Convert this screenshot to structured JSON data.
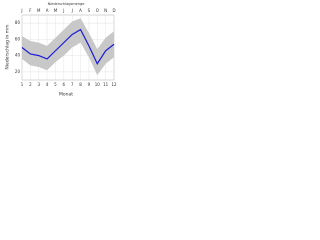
{
  "chart_data": {
    "type": "line",
    "title": "Niederschlagsmenge",
    "x_label": "Monat",
    "y_label": "Niederschlag in mm",
    "x": [
      1,
      2,
      3,
      4,
      5,
      6,
      7,
      8,
      9,
      10,
      11,
      12
    ],
    "categories": [
      "J",
      "F",
      "M",
      "A",
      "M",
      "J",
      "J",
      "A",
      "S",
      "O",
      "N",
      "D"
    ],
    "series": [
      {
        "color": "#1a1adc",
        "values": [
          50,
          42,
          40,
          36,
          46,
          56,
          66,
          72,
          52,
          30,
          46,
          54
        ]
      }
    ],
    "band": {
      "color": "#c8c8c8",
      "upper": [
        64,
        58,
        56,
        52,
        62,
        72,
        82,
        86,
        68,
        48,
        62,
        70
      ],
      "lower": [
        36,
        28,
        26,
        22,
        32,
        40,
        50,
        56,
        38,
        16,
        30,
        38
      ]
    },
    "xlim": [
      1,
      12
    ],
    "xticks": [
      1,
      2,
      3,
      4,
      5,
      6,
      7,
      8,
      9,
      10,
      11,
      12
    ],
    "ylim": [
      10,
      90
    ],
    "yticks": [
      20,
      40,
      60,
      80
    ],
    "grid": true
  }
}
